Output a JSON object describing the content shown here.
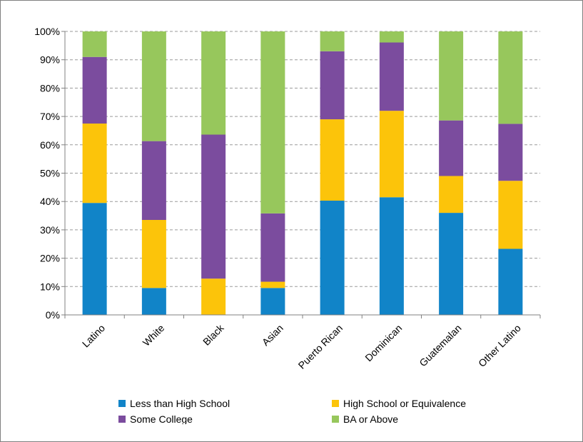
{
  "chart_data": {
    "type": "bar",
    "stacked": true,
    "categories": [
      "Latino",
      "White",
      "Black",
      "Asian",
      "Puerto Rican",
      "Dominican",
      "Guatemalan",
      "Other Latino"
    ],
    "series": [
      {
        "name": "Less than High School",
        "color": "#1184c8",
        "values": [
          39.5,
          9.5,
          0.0,
          9.5,
          40.3,
          41.5,
          36.0,
          23.3
        ]
      },
      {
        "name": "High School or Equivalence",
        "color": "#fcc40a",
        "values": [
          28.0,
          24.0,
          12.8,
          2.2,
          28.7,
          30.5,
          13.0,
          24.0
        ]
      },
      {
        "name": "Some College",
        "color": "#7b4c9e",
        "values": [
          23.5,
          27.8,
          50.8,
          24.1,
          24.0,
          24.1,
          19.6,
          20.1
        ]
      },
      {
        "name": "BA or Above",
        "color": "#97c75c",
        "values": [
          9.0,
          38.7,
          36.4,
          64.2,
          7.0,
          3.9,
          31.4,
          32.6
        ]
      }
    ],
    "ylim": [
      0,
      100
    ],
    "yticks": [
      "0%",
      "10%",
      "20%",
      "30%",
      "40%",
      "50%",
      "60%",
      "70%",
      "80%",
      "90%",
      "100%"
    ],
    "grid": true,
    "legend_position": "bottom"
  }
}
